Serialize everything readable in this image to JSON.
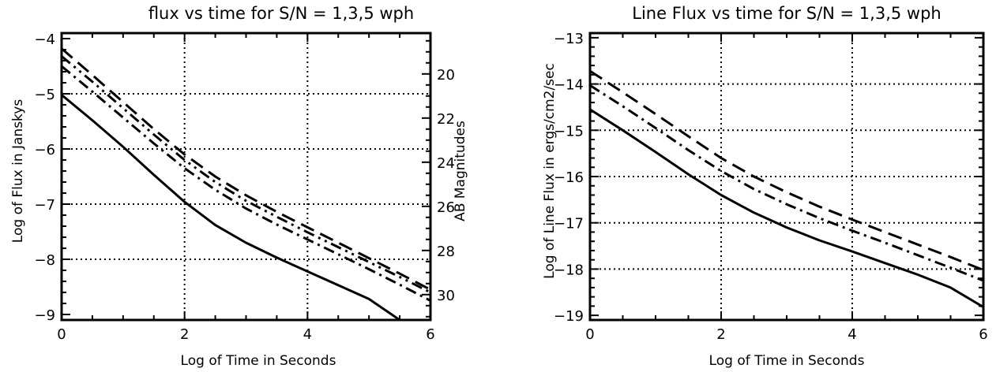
{
  "chart_data": [
    {
      "type": "line",
      "title": "flux vs time for S/N = 1,3,5 wph",
      "xlabel": "Log of Time in Seconds",
      "ylabel": "Log of Flux in Janskys",
      "y2label": "AB Magnitudes",
      "xlim": [
        0,
        6
      ],
      "ylim": [
        -9.1,
        -3.9
      ],
      "y2lim": [
        31.15,
        18.15
      ],
      "xticks": [
        0,
        2,
        4,
        6
      ],
      "yticks": [
        -9,
        -8,
        -7,
        -6,
        -5,
        -4
      ],
      "y2ticks": [
        20,
        22,
        24,
        26,
        28,
        30
      ],
      "xgrid": [
        2,
        4
      ],
      "ygrid": [
        -8,
        -7,
        -6,
        -5
      ],
      "grid": true,
      "series": [
        {
          "style": "solid",
          "x": [
            0,
            0.5,
            1,
            1.5,
            2,
            2.5,
            3,
            3.5,
            4,
            4.5,
            5,
            5.5
          ],
          "y": [
            -5.02,
            -5.48,
            -5.96,
            -6.47,
            -6.96,
            -7.38,
            -7.7,
            -7.97,
            -8.22,
            -8.47,
            -8.72,
            -9.1
          ]
        },
        {
          "style": "dash-dot",
          "x": [
            0,
            0.5,
            1,
            1.5,
            2,
            2.5,
            3,
            3.5,
            4,
            4.5,
            5,
            5.5,
            6
          ],
          "y": [
            -4.5,
            -4.96,
            -5.43,
            -5.9,
            -6.35,
            -6.74,
            -7.08,
            -7.37,
            -7.64,
            -7.91,
            -8.18,
            -8.46,
            -8.75
          ]
        },
        {
          "style": "dash-dot-dot",
          "x": [
            0,
            0.5,
            1,
            1.5,
            2,
            2.5,
            3,
            3.5,
            4,
            4.5,
            5,
            5.5,
            6
          ],
          "y": [
            -4.32,
            -4.78,
            -5.26,
            -5.74,
            -6.2,
            -6.6,
            -6.94,
            -7.23,
            -7.51,
            -7.78,
            -8.05,
            -8.32,
            -8.6
          ]
        },
        {
          "style": "dashed",
          "x": [
            0,
            0.5,
            1,
            1.5,
            2,
            2.5,
            3,
            3.5,
            4,
            4.5,
            5,
            5.5,
            6
          ],
          "y": [
            -4.18,
            -4.66,
            -5.15,
            -5.64,
            -6.1,
            -6.5,
            -6.84,
            -7.14,
            -7.42,
            -7.7,
            -7.98,
            -8.26,
            -8.55
          ]
        }
      ]
    },
    {
      "type": "line",
      "title": "Line Flux vs time for S/N = 1,3,5 wph",
      "xlabel": "Log of Time in Seconds",
      "ylabel": "Log of Line Flux in ergs/cm2/sec",
      "xlim": [
        0,
        6
      ],
      "ylim": [
        -19.1,
        -12.9
      ],
      "xticks": [
        0,
        2,
        4,
        6
      ],
      "yticks": [
        -19,
        -18,
        -17,
        -16,
        -15,
        -14,
        -13
      ],
      "xgrid": [
        2,
        4
      ],
      "ygrid": [
        -18,
        -17,
        -16,
        -15,
        -14
      ],
      "grid": true,
      "series": [
        {
          "style": "solid",
          "x": [
            0,
            0.5,
            1,
            1.5,
            2,
            2.5,
            3,
            3.5,
            4,
            4.5,
            5,
            5.5,
            6
          ],
          "y": [
            -14.55,
            -15.0,
            -15.47,
            -15.95,
            -16.4,
            -16.78,
            -17.1,
            -17.38,
            -17.62,
            -17.87,
            -18.12,
            -18.4,
            -18.82
          ]
        },
        {
          "style": "dash-dot",
          "x": [
            0,
            0.5,
            1,
            1.5,
            2,
            2.5,
            3,
            3.5,
            4,
            4.5,
            5,
            5.5,
            6
          ],
          "y": [
            -14.03,
            -14.48,
            -14.95,
            -15.43,
            -15.88,
            -16.27,
            -16.6,
            -16.9,
            -17.17,
            -17.43,
            -17.7,
            -17.97,
            -18.25
          ]
        },
        {
          "style": "dashed",
          "x": [
            0,
            0.5,
            1,
            1.5,
            2,
            2.5,
            3,
            3.5,
            4,
            4.5,
            5,
            5.5,
            6
          ],
          "y": [
            -13.72,
            -14.18,
            -14.65,
            -15.13,
            -15.6,
            -16.0,
            -16.34,
            -16.65,
            -16.93,
            -17.2,
            -17.47,
            -17.74,
            -18.02
          ]
        }
      ]
    }
  ]
}
